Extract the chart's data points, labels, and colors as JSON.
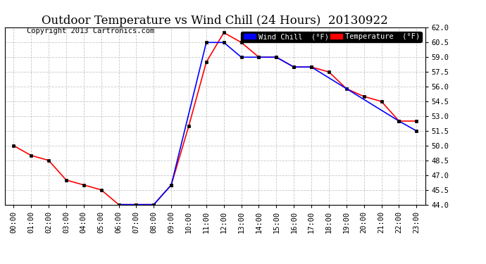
{
  "title": "Outdoor Temperature vs Wind Chill (24 Hours)  20130922",
  "copyright": "Copyright 2013 Cartronics.com",
  "background_color": "#ffffff",
  "plot_bg_color": "#ffffff",
  "grid_color": "#c8c8c8",
  "hours": [
    "00:00",
    "01:00",
    "02:00",
    "03:00",
    "04:00",
    "05:00",
    "06:00",
    "07:00",
    "08:00",
    "09:00",
    "10:00",
    "11:00",
    "12:00",
    "13:00",
    "14:00",
    "15:00",
    "16:00",
    "17:00",
    "18:00",
    "19:00",
    "20:00",
    "21:00",
    "22:00",
    "23:00"
  ],
  "temperature": [
    50.0,
    49.0,
    48.5,
    46.5,
    46.0,
    45.5,
    44.0,
    44.0,
    44.0,
    46.0,
    52.0,
    58.5,
    61.5,
    60.5,
    59.0,
    59.0,
    58.0,
    58.0,
    57.5,
    55.8,
    55.0,
    54.5,
    52.5,
    52.5
  ],
  "wind_chill_x": [
    6,
    7,
    8,
    9,
    11,
    12,
    13,
    14,
    15,
    16,
    17,
    22,
    23
  ],
  "wind_chill_y": [
    44.0,
    44.0,
    44.0,
    46.0,
    60.5,
    60.5,
    59.0,
    59.0,
    59.0,
    58.0,
    58.0,
    52.5,
    51.5
  ],
  "temp_color": "#ff0000",
  "wind_color": "#0000ff",
  "wind_label": "Wind Chill  (°F)",
  "temp_label": "Temperature  (°F)",
  "ylim_min": 44.0,
  "ylim_max": 62.0,
  "yticks": [
    44.0,
    45.5,
    47.0,
    48.5,
    50.0,
    51.5,
    53.0,
    54.5,
    56.0,
    57.5,
    59.0,
    60.5,
    62.0
  ],
  "title_fontsize": 12,
  "copyright_fontsize": 7.5,
  "tick_fontsize": 7.5
}
